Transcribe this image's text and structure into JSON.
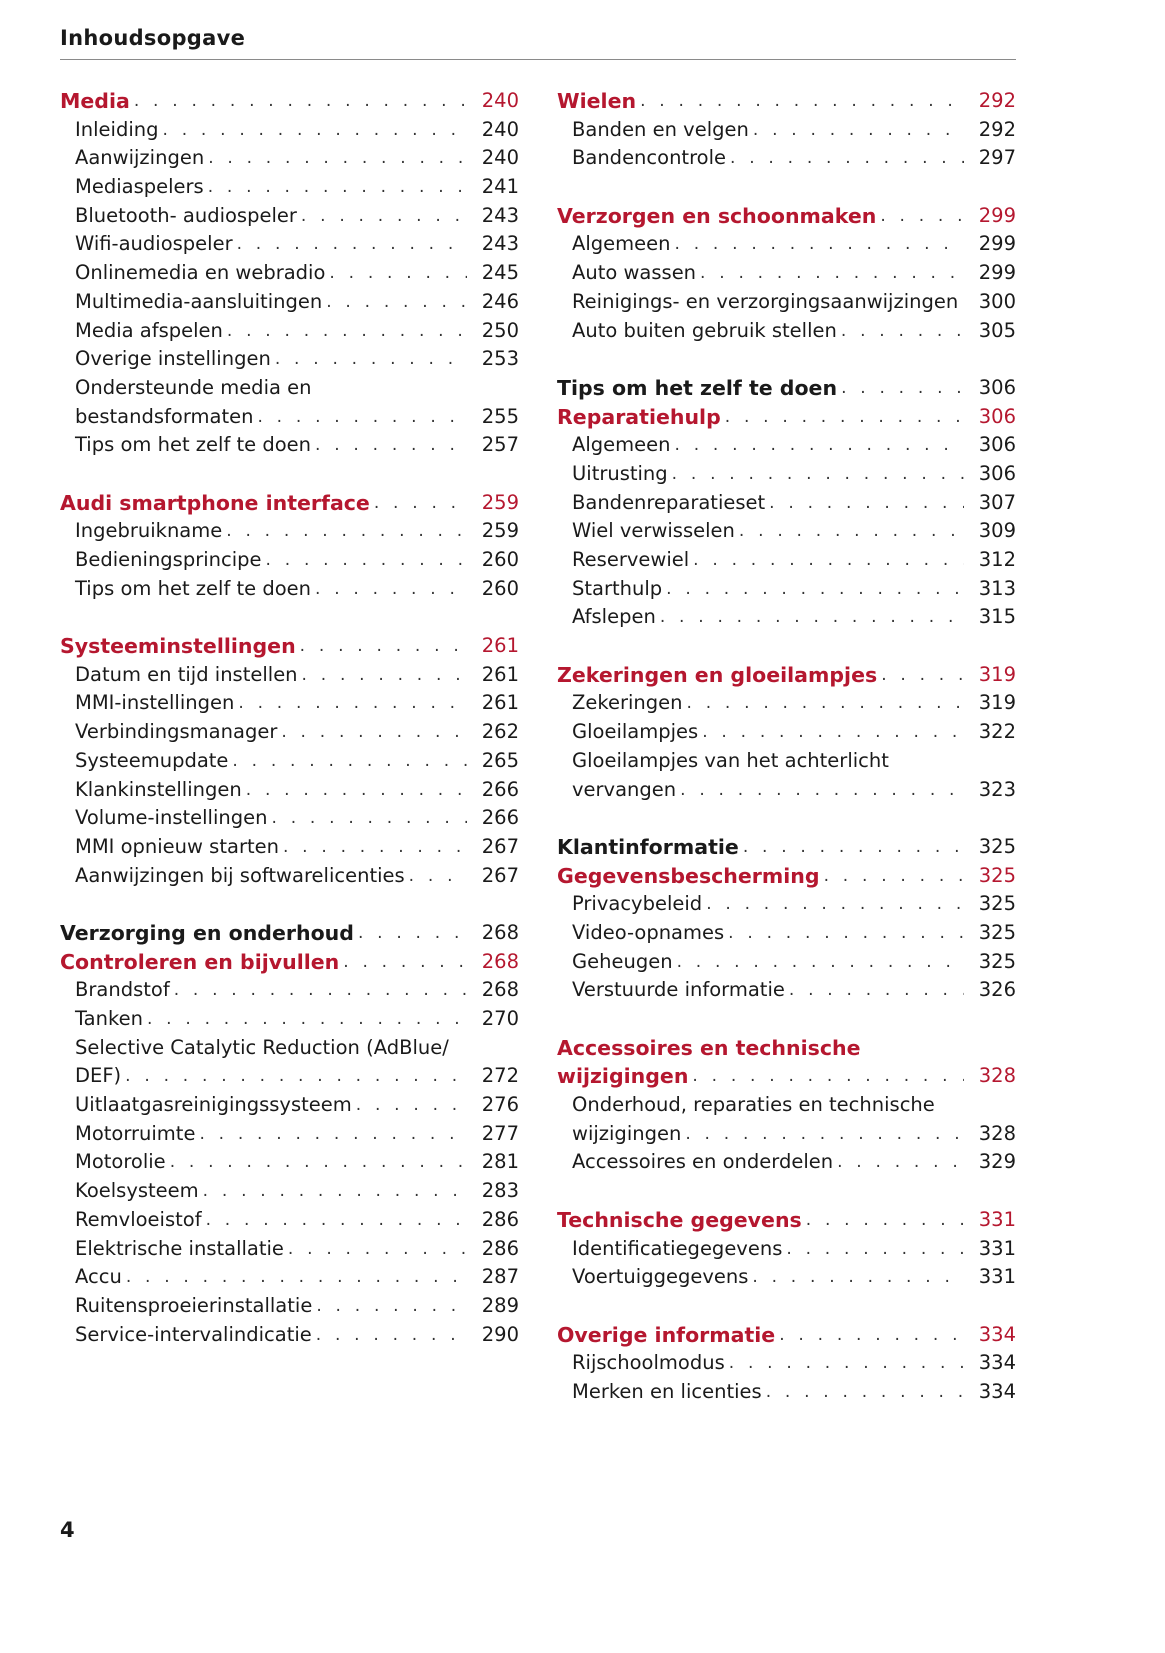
{
  "header": {
    "title": "Inhoudsopgave"
  },
  "footer": {
    "page_number": "4"
  },
  "accent_color": "#b5172f",
  "left": [
    {
      "k": "h",
      "t": "Media",
      "p": "240"
    },
    {
      "k": "s",
      "t": "Inleiding",
      "p": "240"
    },
    {
      "k": "s",
      "t": "Aanwijzingen",
      "p": "240"
    },
    {
      "k": "s",
      "t": "Mediaspelers",
      "p": "241"
    },
    {
      "k": "s",
      "t": "Bluetooth- audiospeler",
      "p": "243"
    },
    {
      "k": "s",
      "t": "Wifi-audiospeler",
      "p": "243"
    },
    {
      "k": "s",
      "t": "Onlinemedia en webradio",
      "p": "245"
    },
    {
      "k": "s",
      "t": "Multimedia-aansluitingen",
      "p": "246"
    },
    {
      "k": "s",
      "t": "Media afspelen",
      "p": "250"
    },
    {
      "k": "s",
      "t": "Overige instellingen",
      "p": "253"
    },
    {
      "k": "s",
      "t": "Ondersteunde media en",
      "p": ""
    },
    {
      "k": "s",
      "t": "bestandsformaten",
      "p": "255"
    },
    {
      "k": "s",
      "t": "Tips om het zelf te doen",
      "p": "257"
    },
    {
      "k": "gap"
    },
    {
      "k": "h",
      "t": "Audi smartphone interface",
      "p": "259"
    },
    {
      "k": "s",
      "t": "Ingebruikname",
      "p": "259"
    },
    {
      "k": "s",
      "t": "Bedieningsprincipe",
      "p": "260"
    },
    {
      "k": "s",
      "t": "Tips om het zelf te doen",
      "p": "260"
    },
    {
      "k": "gap"
    },
    {
      "k": "h",
      "t": "Systeeminstellingen",
      "p": "261"
    },
    {
      "k": "s",
      "t": "Datum en tijd instellen",
      "p": "261"
    },
    {
      "k": "s",
      "t": "MMI-instellingen",
      "p": "261"
    },
    {
      "k": "s",
      "t": "Verbindingsmanager",
      "p": "262"
    },
    {
      "k": "s",
      "t": "Systeemupdate",
      "p": "265"
    },
    {
      "k": "s",
      "t": "Klankinstellingen",
      "p": "266"
    },
    {
      "k": "s",
      "t": "Volume-instellingen",
      "p": "266"
    },
    {
      "k": "s",
      "t": "MMI opnieuw starten",
      "p": "267"
    },
    {
      "k": "s",
      "t": "Aanwijzingen bij softwarelicenties",
      "p": "267"
    },
    {
      "k": "gap"
    },
    {
      "k": "b",
      "t": "Verzorging en onderhoud",
      "p": "268"
    },
    {
      "k": "h",
      "t": "Controleren en bijvullen",
      "p": "268"
    },
    {
      "k": "s",
      "t": "Brandstof",
      "p": "268"
    },
    {
      "k": "s",
      "t": "Tanken",
      "p": "270"
    },
    {
      "k": "s",
      "t": "Selective Catalytic Reduction (AdBlue/",
      "p": ""
    },
    {
      "k": "s",
      "t": "DEF)",
      "p": "272"
    },
    {
      "k": "s",
      "t": "Uitlaatgasreinigingssysteem",
      "p": "276"
    },
    {
      "k": "s",
      "t": "Motorruimte",
      "p": "277"
    },
    {
      "k": "s",
      "t": "Motorolie",
      "p": "281"
    },
    {
      "k": "s",
      "t": "Koelsysteem",
      "p": "283"
    },
    {
      "k": "s",
      "t": "Remvloeistof",
      "p": "286"
    },
    {
      "k": "s",
      "t": "Elektrische installatie",
      "p": "286"
    },
    {
      "k": "s",
      "t": "Accu",
      "p": "287"
    },
    {
      "k": "s",
      "t": "Ruitensproeierinstallatie",
      "p": "289"
    },
    {
      "k": "s",
      "t": "Service-intervalindicatie",
      "p": "290"
    }
  ],
  "right": [
    {
      "k": "h",
      "t": "Wielen",
      "p": "292"
    },
    {
      "k": "s",
      "t": "Banden en velgen",
      "p": "292"
    },
    {
      "k": "s",
      "t": "Bandencontrole",
      "p": "297"
    },
    {
      "k": "gap"
    },
    {
      "k": "h",
      "t": "Verzorgen en schoonmaken",
      "p": "299"
    },
    {
      "k": "s",
      "t": "Algemeen",
      "p": "299"
    },
    {
      "k": "s",
      "t": "Auto wassen",
      "p": "299"
    },
    {
      "k": "s",
      "t": "Reinigings- en verzorgingsaanwijzingen",
      "p": "300"
    },
    {
      "k": "s",
      "t": "Auto buiten gebruik stellen",
      "p": "305"
    },
    {
      "k": "gap"
    },
    {
      "k": "b",
      "t": "Tips om het zelf te doen",
      "p": "306"
    },
    {
      "k": "h",
      "t": "Reparatiehulp",
      "p": "306"
    },
    {
      "k": "s",
      "t": "Algemeen",
      "p": "306"
    },
    {
      "k": "s",
      "t": "Uitrusting",
      "p": "306"
    },
    {
      "k": "s",
      "t": "Bandenreparatieset",
      "p": "307"
    },
    {
      "k": "s",
      "t": "Wiel verwisselen",
      "p": "309"
    },
    {
      "k": "s",
      "t": "Reservewiel",
      "p": "312"
    },
    {
      "k": "s",
      "t": "Starthulp",
      "p": "313"
    },
    {
      "k": "s",
      "t": "Afslepen",
      "p": "315"
    },
    {
      "k": "gap"
    },
    {
      "k": "h",
      "t": "Zekeringen en gloeilampjes",
      "p": "319"
    },
    {
      "k": "s",
      "t": "Zekeringen",
      "p": "319"
    },
    {
      "k": "s",
      "t": "Gloeilampjes",
      "p": "322"
    },
    {
      "k": "s",
      "t": "Gloeilampjes van het achterlicht",
      "p": ""
    },
    {
      "k": "s",
      "t": "vervangen",
      "p": "323"
    },
    {
      "k": "gap"
    },
    {
      "k": "b",
      "t": "Klantinformatie",
      "p": "325"
    },
    {
      "k": "h",
      "t": "Gegevensbescherming",
      "p": "325"
    },
    {
      "k": "s",
      "t": "Privacybeleid",
      "p": "325"
    },
    {
      "k": "s",
      "t": "Video-opnames",
      "p": "325"
    },
    {
      "k": "s",
      "t": "Geheugen",
      "p": "325"
    },
    {
      "k": "s",
      "t": "Verstuurde informatie",
      "p": "326"
    },
    {
      "k": "gap"
    },
    {
      "k": "h",
      "t": "Accessoires en technische",
      "p": ""
    },
    {
      "k": "h",
      "t": "wijzigingen",
      "p": "328"
    },
    {
      "k": "s",
      "t": "Onderhoud, reparaties en technische",
      "p": ""
    },
    {
      "k": "s",
      "t": "wijzigingen",
      "p": "328"
    },
    {
      "k": "s",
      "t": "Accessoires en onderdelen",
      "p": "329"
    },
    {
      "k": "gap"
    },
    {
      "k": "h",
      "t": "Technische gegevens",
      "p": "331"
    },
    {
      "k": "s",
      "t": "Identificatiegegevens",
      "p": "331"
    },
    {
      "k": "s",
      "t": "Voertuiggegevens",
      "p": "331"
    },
    {
      "k": "gap"
    },
    {
      "k": "h",
      "t": "Overige informatie",
      "p": "334"
    },
    {
      "k": "s",
      "t": "Rijschoolmodus",
      "p": "334"
    },
    {
      "k": "s",
      "t": "Merken en licenties",
      "p": "334"
    }
  ]
}
